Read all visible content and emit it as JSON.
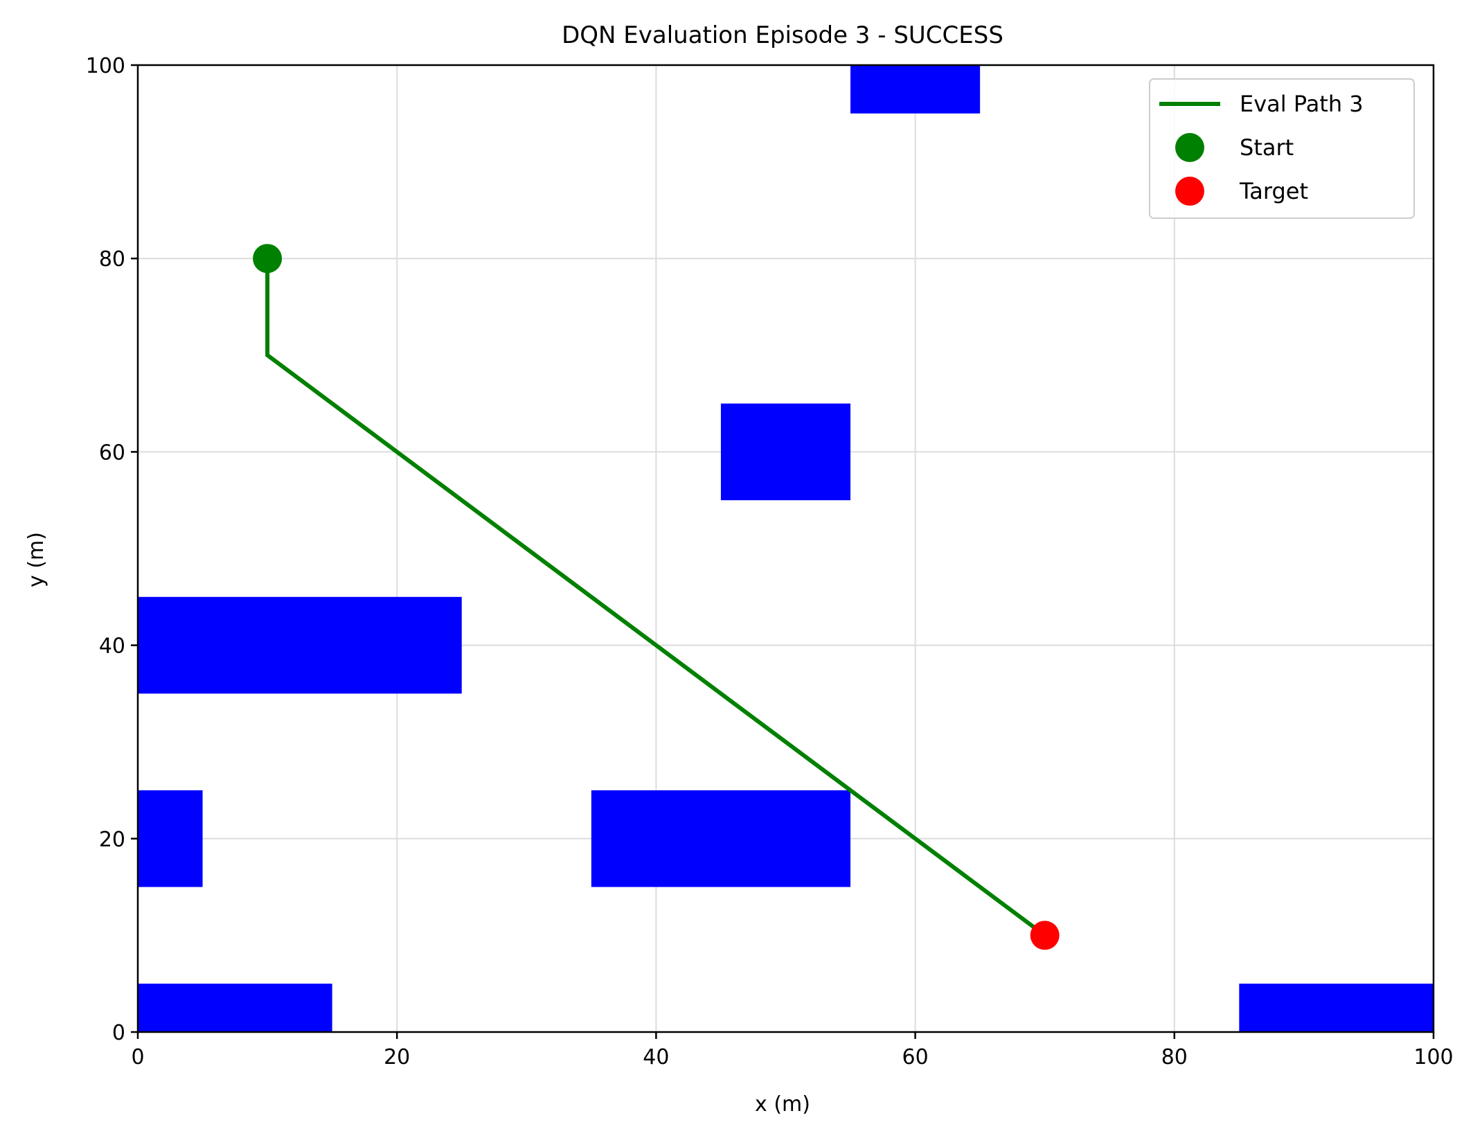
{
  "chart_data": {
    "type": "line",
    "title": "DQN Evaluation Episode 3 - SUCCESS",
    "xlabel": "x (m)",
    "ylabel": "y (m)",
    "xlim": [
      0,
      100
    ],
    "ylim": [
      0,
      100
    ],
    "xticks": [
      "0",
      "20",
      "40",
      "60",
      "80",
      "100"
    ],
    "yticks": [
      "0",
      "20",
      "40",
      "60",
      "80",
      "100"
    ],
    "grid": true,
    "legend_position": "top-right",
    "obstacle_color": "#0000ff",
    "obstacles": [
      {
        "x0": 0,
        "x1": 15,
        "y0": 0,
        "y1": 5
      },
      {
        "x0": 0,
        "x1": 5,
        "y0": 15,
        "y1": 25
      },
      {
        "x0": 0,
        "x1": 25,
        "y0": 35,
        "y1": 45
      },
      {
        "x0": 35,
        "x1": 55,
        "y0": 15,
        "y1": 25
      },
      {
        "x0": 45,
        "x1": 55,
        "y0": 55,
        "y1": 65
      },
      {
        "x0": 55,
        "x1": 65,
        "y0": 95,
        "y1": 100
      },
      {
        "x0": 85,
        "x1": 100,
        "y0": 0,
        "y1": 5
      }
    ],
    "series": [
      {
        "name": "Eval Path 3",
        "color": "#008000",
        "x": [
          10,
          10,
          70
        ],
        "y": [
          80,
          70,
          10
        ]
      }
    ],
    "markers": [
      {
        "name": "Start",
        "color": "#008000",
        "x": 10,
        "y": 80
      },
      {
        "name": "Target",
        "color": "#ff0000",
        "x": 70,
        "y": 10
      }
    ]
  }
}
